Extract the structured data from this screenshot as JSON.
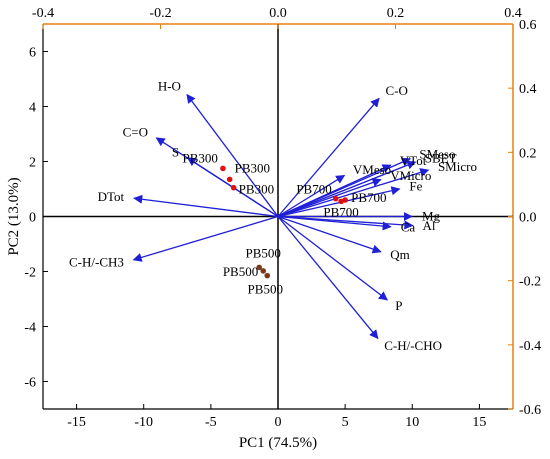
{
  "chart_data": {
    "type": "scatter",
    "subtype": "pca-biplot",
    "xlabel": "PC1 (74.5%)",
    "ylabel": "PC2 (13.0%)",
    "xlim": [
      -17.5,
      17.5
    ],
    "ylim": [
      -7,
      7
    ],
    "xticks": [
      -15,
      -10,
      -5,
      0,
      5,
      10,
      15
    ],
    "yticks": [
      -6,
      -4,
      -2,
      0,
      2,
      4,
      6
    ],
    "top_axis": {
      "lim": [
        -0.4,
        0.4
      ],
      "ticks": [
        -0.4,
        -0.2,
        0.0,
        0.2,
        0.4
      ],
      "tick_labels": [
        "-0.4",
        "-0.2",
        "0.0",
        "0.2",
        "0.4"
      ],
      "color": "#e8820c"
    },
    "right_axis": {
      "lim": [
        -0.6,
        0.6
      ],
      "ticks": [
        -0.6,
        -0.4,
        -0.2,
        0.0,
        0.2,
        0.4,
        0.6
      ],
      "tick_labels": [
        "-0.6",
        "-0.4",
        "-0.2",
        "0.0",
        "0.2",
        "0.4",
        "0.6"
      ],
      "color": "#e8820c"
    },
    "grid": false,
    "colors": {
      "vectors": "#1f1fd6",
      "scores_red": "#e01010",
      "scores_brown": "#7a3a1a",
      "accent_axis": "#e8820c"
    },
    "loadings": [
      {
        "label": "H-O",
        "x": -0.155,
        "y": 0.38
      },
      {
        "label": "C=O",
        "x": -0.207,
        "y": 0.245
      },
      {
        "label": "S",
        "x": -0.154,
        "y": 0.183
      },
      {
        "label": "DTot",
        "x": -0.245,
        "y": 0.057
      },
      {
        "label": "C-H/-CH3",
        "x": -0.246,
        "y": -0.135
      },
      {
        "label": "C-O",
        "x": 0.172,
        "y": 0.368
      },
      {
        "label": "VTot",
        "x": 0.192,
        "y": 0.16
      },
      {
        "label": "SMeso",
        "x": 0.225,
        "y": 0.18
      },
      {
        "label": "SBET",
        "x": 0.234,
        "y": 0.17
      },
      {
        "label": "SMicro",
        "x": 0.256,
        "y": 0.145
      },
      {
        "label": "VMeso",
        "x": 0.113,
        "y": 0.128
      },
      {
        "label": "VMicro",
        "x": 0.175,
        "y": 0.115
      },
      {
        "label": "Fe",
        "x": 0.207,
        "y": 0.086
      },
      {
        "label": "Mg",
        "x": 0.228,
        "y": 0.0
      },
      {
        "label": "Ca",
        "x": 0.192,
        "y": -0.032
      },
      {
        "label": "Al",
        "x": 0.229,
        "y": -0.028
      },
      {
        "label": "Qm",
        "x": 0.175,
        "y": -0.11
      },
      {
        "label": "P",
        "x": 0.186,
        "y": -0.26
      },
      {
        "label": "C-H/-CHO",
        "x": 0.17,
        "y": -0.38
      }
    ],
    "scores": [
      {
        "label": "PB300",
        "x": -4.1,
        "y": 1.75,
        "color": "scores_red"
      },
      {
        "label": "PB300",
        "x": -3.6,
        "y": 1.35,
        "color": "scores_red"
      },
      {
        "label": "PB300",
        "x": -3.3,
        "y": 1.05,
        "color": "scores_red"
      },
      {
        "label": "PB700",
        "x": 4.3,
        "y": 0.65,
        "color": "scores_red"
      },
      {
        "label": "PB700",
        "x": 5.0,
        "y": 0.6,
        "color": "scores_red"
      },
      {
        "label": "PB700",
        "x": 4.7,
        "y": 0.55,
        "color": "scores_red"
      },
      {
        "label": "PB500",
        "x": -1.4,
        "y": -1.85,
        "color": "scores_brown"
      },
      {
        "label": "PB500",
        "x": -1.1,
        "y": -1.98,
        "color": "scores_brown"
      },
      {
        "label": "PB500",
        "x": -0.8,
        "y": -2.15,
        "color": "scores_brown"
      }
    ]
  }
}
